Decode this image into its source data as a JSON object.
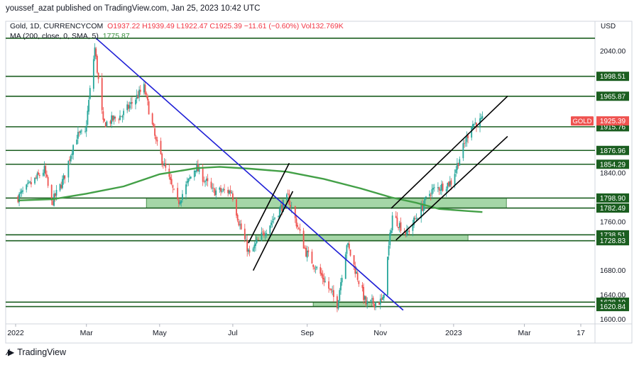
{
  "publish_line": "youssef_azat published on TradingView.com, Jan 25, 2023 10:42 UTC",
  "legend": {
    "symbol": "Gold, 1D, CURRENCYCOM",
    "ohlc": "O1937.22  H1939.49  L1922.47  C1925.39  −11.61 (−0.60%)  Vol132.769K",
    "ma_label": "MA (200, close, 0, SMA, 5)",
    "ma_value": "1775.87"
  },
  "brand": {
    "name": "TradingView",
    "logo_icon": "tradingview-logo-icon"
  },
  "colors": {
    "up": "#26a69a",
    "down": "#ef5350",
    "level": "#1b5e20",
    "zone": "#a5d6a7",
    "zone_border": "#2e7d32",
    "ma": "#43a047",
    "trend": "#1f1fd6",
    "channel": "#000000",
    "price_tag": "#ef5350"
  },
  "chart_data": {
    "type": "candlestick",
    "currency": "USD",
    "price_ticks": [
      1600,
      1640,
      1680,
      1760,
      1840,
      2040
    ],
    "price_tick_labels": [
      "1600.00",
      "1640.00",
      "1680.00",
      "1760.00",
      "1840.00",
      "2040.00"
    ],
    "ylim": [
      1597,
      2060
    ],
    "x_ticks": [
      {
        "label": "2022",
        "date": "2022-01-01"
      },
      {
        "label": "Mar",
        "date": "2022-03-01"
      },
      {
        "label": "May",
        "date": "2022-05-01"
      },
      {
        "label": "Jul",
        "date": "2022-07-01"
      },
      {
        "label": "Sep",
        "date": "2022-09-01"
      },
      {
        "label": "Nov",
        "date": "2022-11-01"
      },
      {
        "label": "2023",
        "date": "2023-01-01"
      },
      {
        "label": "Mar",
        "date": "2023-03-01"
      },
      {
        "label": "17",
        "date": "2023-04-17"
      }
    ],
    "levels": [
      {
        "value": 1998.51,
        "label": "1998.51"
      },
      {
        "value": 1965.87,
        "label": "1965.87"
      },
      {
        "value": 1915.76,
        "label": "1915.76"
      },
      {
        "value": 1876.96,
        "label": "1876.96"
      },
      {
        "value": 1854.29,
        "label": "1854.29"
      },
      {
        "value": 1798.9,
        "label": "1798.90"
      },
      {
        "value": 1782.49,
        "label": "1782.49"
      },
      {
        "value": 1738.51,
        "label": "1738.51"
      },
      {
        "value": 1728.83,
        "label": "1728.83"
      },
      {
        "value": 1628.1,
        "label": "1628.10"
      },
      {
        "value": 1620.84,
        "label": "1620.84"
      }
    ],
    "top_level": 2061,
    "last_price": {
      "symbol": "GOLD",
      "value": 1925.39,
      "label": "1925.39"
    },
    "zones": [
      {
        "start": "2022-04-20",
        "end": "2023-02-14",
        "low": 1782.49,
        "high": 1798.9
      },
      {
        "start": "2022-07-20",
        "end": "2023-01-13",
        "low": 1728.83,
        "high": 1738.51
      },
      {
        "start": "2022-09-06",
        "end": "2022-10-25",
        "low": 1620.84,
        "high": 1628.1
      }
    ],
    "trendlines": [
      {
        "kind": "downtrend",
        "from": {
          "date": "2022-03-09",
          "price": 2061
        },
        "to": {
          "date": "2022-11-20",
          "price": 1615
        }
      },
      {
        "kind": "flag-upper",
        "from": {
          "date": "2022-07-14",
          "price": 1725
        },
        "to": {
          "date": "2022-08-17",
          "price": 1856
        }
      },
      {
        "kind": "flag-lower",
        "from": {
          "date": "2022-07-18",
          "price": 1680
        },
        "to": {
          "date": "2022-08-20",
          "price": 1810
        }
      },
      {
        "kind": "channel-upper",
        "from": {
          "date": "2022-11-10",
          "price": 1782
        },
        "to": {
          "date": "2023-02-15",
          "price": 1966
        }
      },
      {
        "kind": "channel-lower",
        "from": {
          "date": "2022-11-14",
          "price": 1730
        },
        "to": {
          "date": "2023-02-15",
          "price": 1900
        }
      }
    ],
    "ma_series": [
      [
        "2022-01-03",
        1795
      ],
      [
        "2022-02-01",
        1797
      ],
      [
        "2022-03-01",
        1806
      ],
      [
        "2022-04-01",
        1818
      ],
      [
        "2022-05-01",
        1838
      ],
      [
        "2022-06-01",
        1848
      ],
      [
        "2022-06-20",
        1850
      ],
      [
        "2022-07-15",
        1847
      ],
      [
        "2022-08-15",
        1842
      ],
      [
        "2022-09-15",
        1830
      ],
      [
        "2022-10-15",
        1815
      ],
      [
        "2022-11-10",
        1800
      ],
      [
        "2022-12-01",
        1791
      ],
      [
        "2022-12-20",
        1781
      ],
      [
        "2023-01-10",
        1778
      ],
      [
        "2023-01-25",
        1775.87
      ]
    ],
    "price_path": [
      [
        "2022-01-03",
        1800
      ],
      [
        "2022-01-25",
        1845
      ],
      [
        "2022-01-31",
        1790
      ],
      [
        "2022-02-10",
        1830
      ],
      [
        "2022-02-20",
        1900
      ],
      [
        "2022-02-28",
        1905
      ],
      [
        "2022-03-08",
        2045
      ],
      [
        "2022-03-15",
        1920
      ],
      [
        "2022-03-31",
        1935
      ],
      [
        "2022-04-18",
        1980
      ],
      [
        "2022-04-28",
        1890
      ],
      [
        "2022-05-16",
        1790
      ],
      [
        "2022-05-31",
        1850
      ],
      [
        "2022-06-14",
        1810
      ],
      [
        "2022-06-30",
        1810
      ],
      [
        "2022-07-06",
        1760
      ],
      [
        "2022-07-15",
        1705
      ],
      [
        "2022-07-21",
        1725
      ],
      [
        "2022-08-16",
        1800
      ],
      [
        "2022-08-31",
        1710
      ],
      [
        "2022-09-15",
        1665
      ],
      [
        "2022-09-26",
        1625
      ],
      [
        "2022-10-04",
        1725
      ],
      [
        "2022-10-20",
        1625
      ],
      [
        "2022-11-03",
        1630
      ],
      [
        "2022-11-11",
        1770
      ],
      [
        "2022-11-23",
        1740
      ],
      [
        "2022-12-06",
        1785
      ],
      [
        "2022-12-13",
        1810
      ],
      [
        "2022-12-30",
        1825
      ],
      [
        "2023-01-06",
        1865
      ],
      [
        "2023-01-16",
        1920
      ],
      [
        "2023-01-25",
        1925.39
      ]
    ]
  }
}
